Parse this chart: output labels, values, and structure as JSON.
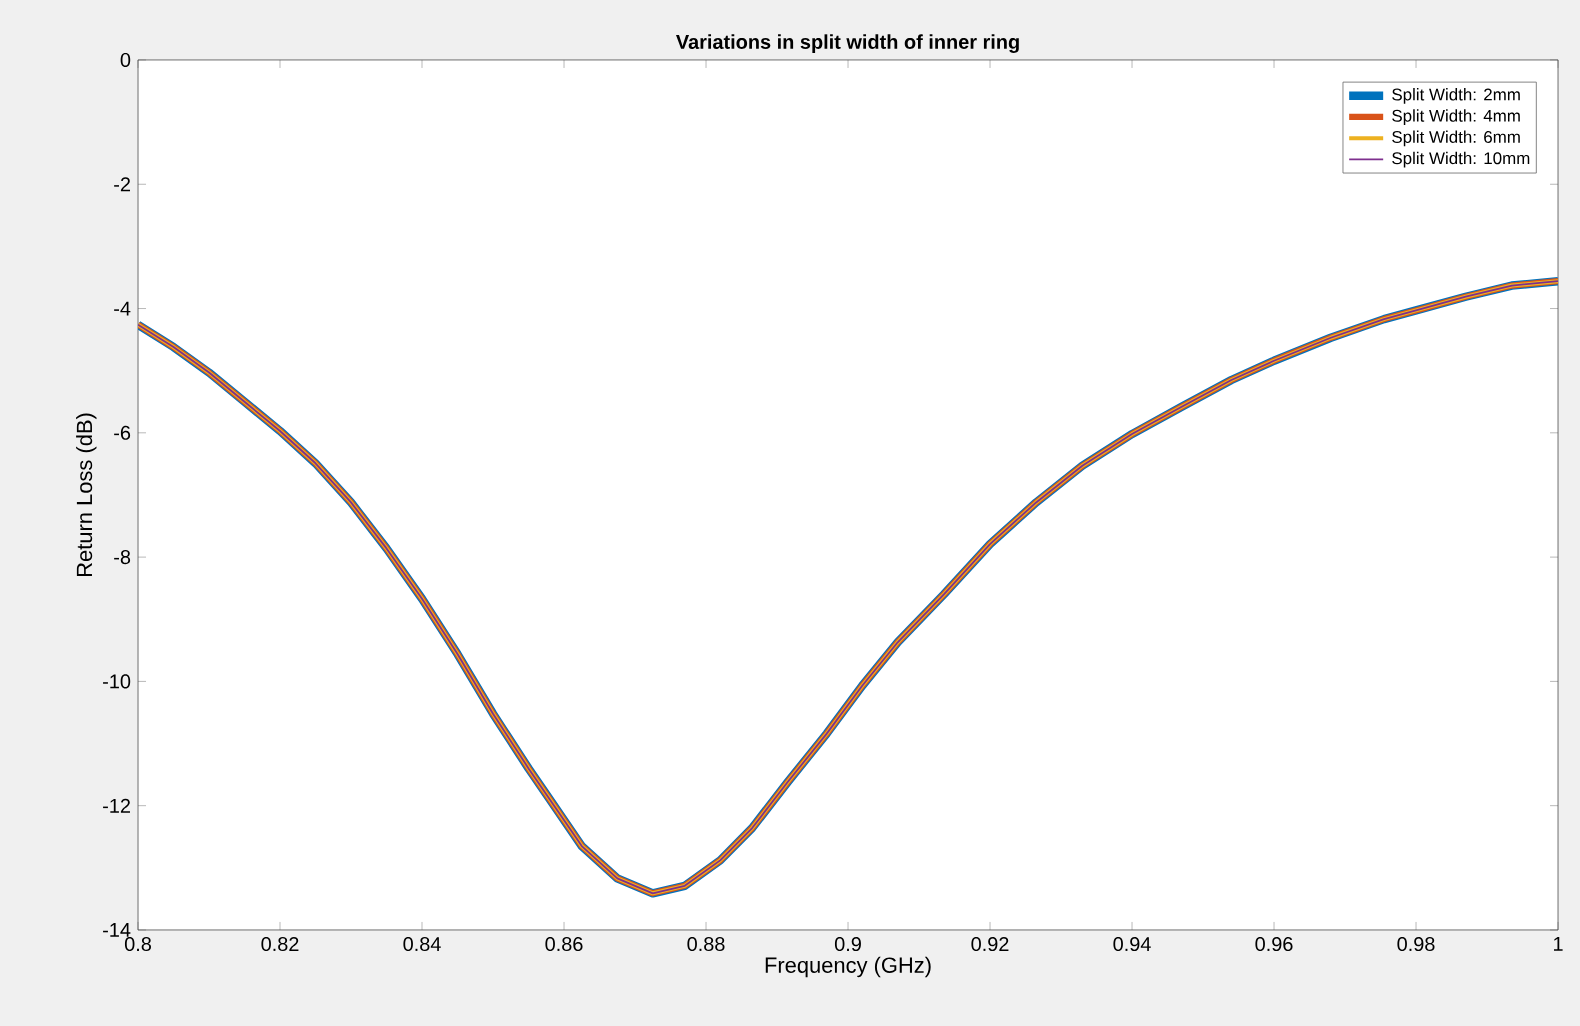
{
  "chart_data": {
    "type": "line",
    "title": "Variations in split width of inner ring",
    "xlabel": "Frequency (GHz)",
    "ylabel": "Return Loss (dB)",
    "x": [
      0.8,
      0.805,
      0.81,
      0.815,
      0.82,
      0.825,
      0.83,
      0.835,
      0.84,
      0.845,
      0.85,
      0.855,
      0.858,
      0.8625,
      0.8675,
      0.8725,
      0.877,
      0.882,
      0.8865,
      0.8915,
      0.897,
      0.902,
      0.907,
      0.9135,
      0.92,
      0.9265,
      0.933,
      0.94,
      0.947,
      0.954,
      0.96,
      0.968,
      0.9755,
      0.98,
      0.987,
      0.9935,
      1.0
    ],
    "series": [
      {
        "name": "Split Width: 2mm",
        "color": "#0072bd",
        "values": [
          -4.26,
          -4.62,
          -5.03,
          -5.5,
          -5.97,
          -6.49,
          -7.12,
          -7.86,
          -8.67,
          -9.56,
          -10.52,
          -11.4,
          -11.9,
          -12.65,
          -13.17,
          -13.41,
          -13.29,
          -12.88,
          -12.36,
          -11.62,
          -10.84,
          -10.07,
          -9.37,
          -8.6,
          -7.79,
          -7.12,
          -6.53,
          -6.02,
          -5.58,
          -5.15,
          -4.84,
          -4.47,
          -4.17,
          -4.03,
          -3.81,
          -3.63,
          -3.56
        ]
      },
      {
        "name": "Split Width: 4mm",
        "color": "#d95319",
        "values": [
          -4.26,
          -4.62,
          -5.03,
          -5.5,
          -5.97,
          -6.49,
          -7.12,
          -7.86,
          -8.67,
          -9.56,
          -10.52,
          -11.4,
          -11.9,
          -12.65,
          -13.17,
          -13.41,
          -13.29,
          -12.88,
          -12.36,
          -11.62,
          -10.84,
          -10.07,
          -9.37,
          -8.6,
          -7.79,
          -7.12,
          -6.53,
          -6.02,
          -5.58,
          -5.15,
          -4.84,
          -4.47,
          -4.17,
          -4.03,
          -3.81,
          -3.63,
          -3.56
        ]
      },
      {
        "name": "Split Width: 6mm",
        "color": "#edb120",
        "values": [
          -4.26,
          -4.62,
          -5.03,
          -5.5,
          -5.97,
          -6.49,
          -7.12,
          -7.86,
          -8.67,
          -9.56,
          -10.52,
          -11.4,
          -11.9,
          -12.65,
          -13.17,
          -13.41,
          -13.29,
          -12.88,
          -12.36,
          -11.62,
          -10.84,
          -10.07,
          -9.37,
          -8.6,
          -7.79,
          -7.12,
          -6.53,
          -6.02,
          -5.58,
          -5.15,
          -4.84,
          -4.47,
          -4.17,
          -4.03,
          -3.81,
          -3.63,
          -3.56
        ]
      },
      {
        "name": "Split Width: 10mm",
        "color": "#7e2f8e",
        "values": [
          -4.26,
          -4.62,
          -5.03,
          -5.5,
          -5.97,
          -6.49,
          -7.12,
          -7.86,
          -8.67,
          -9.56,
          -10.52,
          -11.4,
          -11.9,
          -12.65,
          -13.17,
          -13.41,
          -13.29,
          -12.88,
          -12.36,
          -11.62,
          -10.84,
          -10.07,
          -9.37,
          -8.6,
          -7.79,
          -7.12,
          -6.53,
          -6.02,
          -5.58,
          -5.15,
          -4.84,
          -4.47,
          -4.17,
          -4.03,
          -3.81,
          -3.63,
          -3.56
        ]
      }
    ],
    "xlim": [
      0.8,
      1.0
    ],
    "xticks": [
      0.8,
      0.82,
      0.84,
      0.86,
      0.88,
      0.9,
      0.92,
      0.94,
      0.96,
      0.98,
      1
    ],
    "ylim": [
      -14,
      0
    ],
    "yticks": [
      -14,
      -12,
      -10,
      -8,
      -6,
      -4,
      -2,
      0
    ],
    "legend": "top right",
    "grid": false,
    "marker": "none",
    "line_style": "solid"
  }
}
